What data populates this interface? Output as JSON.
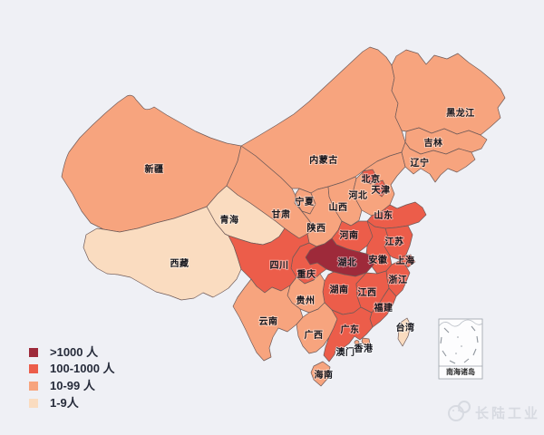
{
  "background_color": "#eff0f5",
  "map": {
    "description": "China province choropleth",
    "category_colors": {
      "gt1000": "#9e2a3a",
      "c100_1000": "#ec5d4a",
      "c10_99": "#f7a47e",
      "c1_9": "#fadcc0"
    },
    "border_color": "#6e5a58",
    "provinces": [
      {
        "id": "xinjiang",
        "name": "新疆",
        "category": "c10_99"
      },
      {
        "id": "xizang",
        "name": "西藏",
        "category": "c1_9"
      },
      {
        "id": "qinghai",
        "name": "青海",
        "category": "c1_9"
      },
      {
        "id": "gansu",
        "name": "甘肃",
        "category": "c10_99"
      },
      {
        "id": "neimenggu",
        "name": "内蒙古",
        "category": "c10_99"
      },
      {
        "id": "ningxia",
        "name": "宁夏",
        "category": "c10_99"
      },
      {
        "id": "shaanxi",
        "name": "陕西",
        "category": "c10_99"
      },
      {
        "id": "shanxi",
        "name": "山西",
        "category": "c10_99"
      },
      {
        "id": "hebei",
        "name": "河北",
        "category": "c10_99"
      },
      {
        "id": "beijing",
        "name": "北京",
        "category": "c100_1000"
      },
      {
        "id": "tianjin",
        "name": "天津",
        "category": "c100_1000"
      },
      {
        "id": "shandong",
        "name": "山东",
        "category": "c100_1000"
      },
      {
        "id": "henan",
        "name": "河南",
        "category": "c100_1000"
      },
      {
        "id": "jiangsu",
        "name": "江苏",
        "category": "c100_1000"
      },
      {
        "id": "anhui",
        "name": "安徽",
        "category": "c100_1000"
      },
      {
        "id": "shanghai",
        "name": "上海",
        "category": "c100_1000"
      },
      {
        "id": "zhejiang",
        "name": "浙江",
        "category": "c100_1000"
      },
      {
        "id": "hubei",
        "name": "湖北",
        "category": "gt1000"
      },
      {
        "id": "chongqing",
        "name": "重庆",
        "category": "c100_1000"
      },
      {
        "id": "sichuan",
        "name": "四川",
        "category": "c100_1000"
      },
      {
        "id": "hunan",
        "name": "湖南",
        "category": "c100_1000"
      },
      {
        "id": "jiangxi",
        "name": "江西",
        "category": "c100_1000"
      },
      {
        "id": "fujian",
        "name": "福建",
        "category": "c100_1000"
      },
      {
        "id": "guizhou",
        "name": "贵州",
        "category": "c10_99"
      },
      {
        "id": "yunnan",
        "name": "云南",
        "category": "c10_99"
      },
      {
        "id": "guangxi",
        "name": "广西",
        "category": "c10_99"
      },
      {
        "id": "guangdong",
        "name": "广东",
        "category": "c100_1000"
      },
      {
        "id": "aomen",
        "name": "澳门",
        "category": "c10_99"
      },
      {
        "id": "xianggang",
        "name": "香港",
        "category": "c10_99"
      },
      {
        "id": "hainan",
        "name": "海南",
        "category": "c10_99"
      },
      {
        "id": "taiwan",
        "name": "台湾",
        "category": "c1_9"
      },
      {
        "id": "heilongjiang",
        "name": "黑龙江",
        "category": "c10_99"
      },
      {
        "id": "jilin",
        "name": "吉林",
        "category": "c10_99"
      },
      {
        "id": "liaoning",
        "name": "辽宁",
        "category": "c10_99"
      }
    ]
  },
  "legend": {
    "items": [
      {
        "label": ">1000 人",
        "color": "#9e2a3a"
      },
      {
        "label": "100-1000 人",
        "color": "#ec5d4a"
      },
      {
        "label": "10-99 人",
        "color": "#f7a47e"
      },
      {
        "label": "1-9人",
        "color": "#fadcc0"
      }
    ]
  },
  "inset": {
    "label": "南海诸岛"
  },
  "watermark": {
    "text": "长陆工业"
  }
}
